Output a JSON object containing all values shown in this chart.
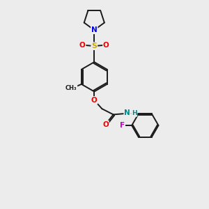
{
  "bg_color": "#ececec",
  "bond_color": "#1a1a1a",
  "line_width": 1.4,
  "atom_colors": {
    "N": "#0000ee",
    "O": "#ee0000",
    "S": "#ccaa00",
    "F": "#cc00cc",
    "NH": "#008888",
    "C": "#1a1a1a"
  }
}
